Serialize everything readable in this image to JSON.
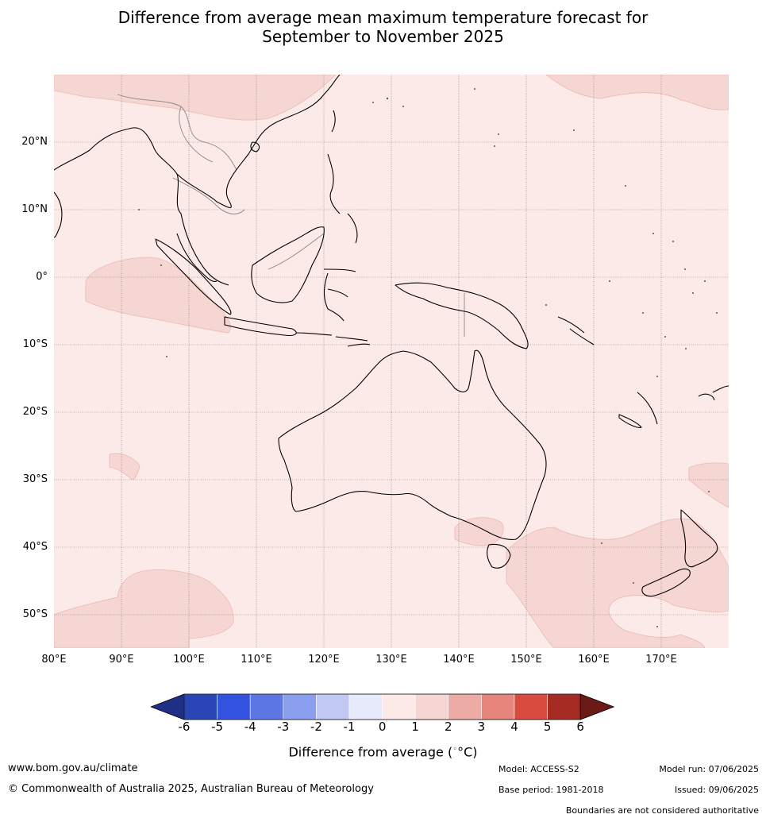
{
  "title_line1": "Difference from average mean maximum temperature forecast for",
  "title_line2": "September to November 2025",
  "map": {
    "lat_labels": [
      "20°N",
      "10°N",
      "0°",
      "10°S",
      "20°S",
      "30°S",
      "40°S",
      "50°S"
    ],
    "lon_labels": [
      "80°E",
      "90°E",
      "100°E",
      "110°E",
      "120°E",
      "130°E",
      "140°E",
      "150°E",
      "160°E",
      "170°E"
    ],
    "background_color": "#fceae8",
    "warm_anomaly_color": "#f6d6d3",
    "coastline_color": "#000000",
    "border_color": "#888888"
  },
  "colorbar": {
    "ticks": [
      "-6",
      "-5",
      "-4",
      "-3",
      "-2",
      "-1",
      "0",
      "1",
      "2",
      "3",
      "4",
      "5",
      "6"
    ],
    "colors": [
      "#1f2f86",
      "#2a45b5",
      "#3352e0",
      "#5c76e4",
      "#8a9fee",
      "#c0c8f3",
      "#e6eafa",
      "#fceae8",
      "#f6d6d3",
      "#ecaca5",
      "#e6857c",
      "#d94b3f",
      "#a52a22",
      "#6b1a16"
    ],
    "label": "Difference from average (",
    "label_unit": "°C)"
  },
  "footer": {
    "website": "www.bom.gov.au/climate",
    "copyright": "© Commonwealth of Australia 2025, Australian Bureau of Meteorology",
    "model": "Model: ACCESS-S2",
    "base_period": "Base period: 1981-2018",
    "model_run": "Model run: 07/06/2025",
    "issued": "Issued: 09/06/2025",
    "disclaimer": "Boundaries are not considered authoritative"
  }
}
